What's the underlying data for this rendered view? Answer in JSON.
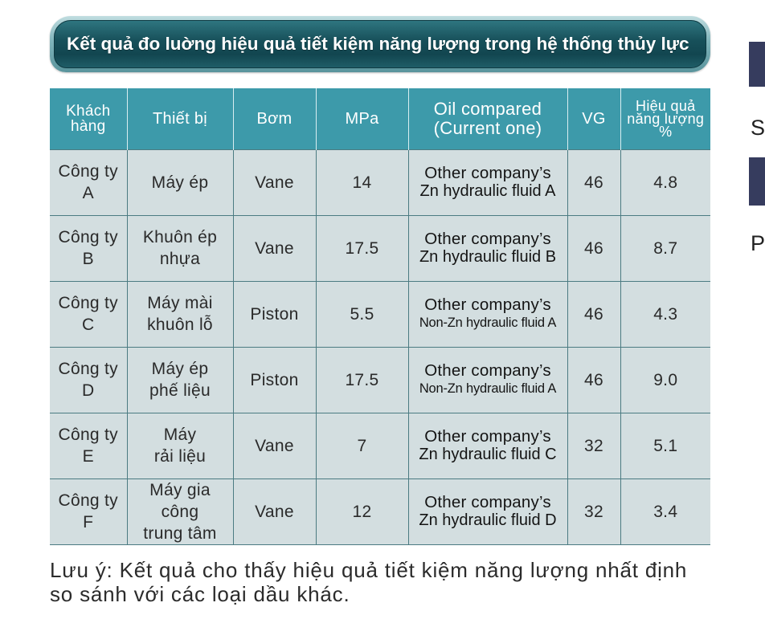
{
  "banner": {
    "title": "Kết quả đo luờng hiệu quả tiết kiệm năng lượng trong hệ thống thủy lực"
  },
  "table": {
    "headers": {
      "customer": [
        "Khách",
        "hàng"
      ],
      "equipment": "Thiết bị",
      "pump": "Bơm",
      "pressure": "MPa",
      "oil": [
        "Oil compared",
        "(Current one)"
      ],
      "vg": "VG",
      "efficiency": [
        "Hiệu quả",
        "năng lượng",
        "%"
      ]
    },
    "rows": [
      {
        "customer": [
          "Công ty",
          "A"
        ],
        "equipment": [
          "Máy ép"
        ],
        "pump": "Vane",
        "pressure": "14",
        "oil": [
          "Other company’s",
          "Zn hydraulic fluid A"
        ],
        "vg": "46",
        "efficiency": "4.8"
      },
      {
        "customer": [
          "Công ty",
          "B"
        ],
        "equipment": [
          "Khuôn ép",
          "nhựa"
        ],
        "pump": "Vane",
        "pressure": "17.5",
        "oil": [
          "Other company’s",
          "Zn hydraulic fluid B"
        ],
        "vg": "46",
        "efficiency": "8.7"
      },
      {
        "customer": [
          "Công ty",
          "C"
        ],
        "equipment": [
          "Máy mài",
          "khuôn lỗ"
        ],
        "pump": "Piston",
        "pressure": "5.5",
        "oil": [
          "Other company’s",
          "Non-Zn hydraulic fluid A"
        ],
        "vg": "46",
        "efficiency": "4.3"
      },
      {
        "customer": [
          "Công ty",
          "D"
        ],
        "equipment": [
          "Máy ép",
          "phế liệu"
        ],
        "pump": "Piston",
        "pressure": "17.5",
        "oil": [
          "Other company’s",
          "Non-Zn hydraulic fluid A"
        ],
        "vg": "46",
        "efficiency": "9.0"
      },
      {
        "customer": [
          "Công ty",
          "E"
        ],
        "equipment": [
          "Máy",
          "rải liệu"
        ],
        "pump": "Vane",
        "pressure": "7",
        "oil": [
          "Other company’s",
          "Zn hydraulic fluid C"
        ],
        "vg": "32",
        "efficiency": "5.1"
      },
      {
        "customer": [
          "Công ty",
          "F"
        ],
        "equipment": [
          "Máy gia công",
          "trung tâm"
        ],
        "pump": "Vane",
        "pressure": "12",
        "oil": [
          "Other company’s",
          "Zn hydraulic fluid D"
        ],
        "vg": "32",
        "efficiency": "3.4"
      }
    ]
  },
  "note": {
    "lines": [
      "Lưu ý: Kết quả cho thấy hiệu quả tiết kiệm năng lượng nhất định",
      "so sánh với các loại dầu khác."
    ]
  },
  "side": {
    "letters": [
      "S",
      "P"
    ]
  },
  "colors": {
    "header_bg": "#3d9aaa",
    "cell_bg": "#d3dee0",
    "grid_line": "#4b7b82",
    "banner_fill": "#17505a",
    "banner_frame": "#7fb4bb",
    "text": "#2a2a2a",
    "side_block": "#363c5e"
  }
}
